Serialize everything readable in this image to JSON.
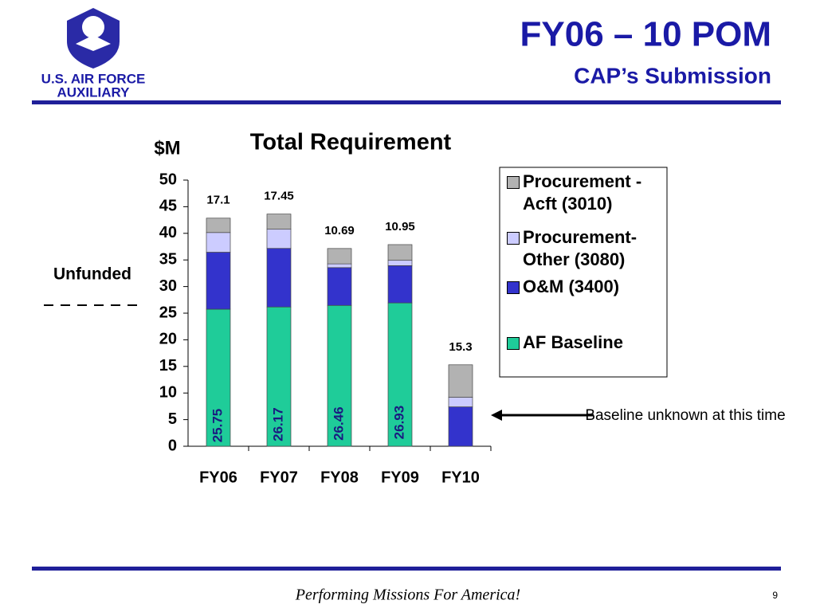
{
  "header": {
    "title": "FY06 – 10 POM",
    "subtitle": "CAP’s Submission"
  },
  "logo": {
    "line1": "U.S. AIR FORCE",
    "line2": "AUXILIARY"
  },
  "footer": {
    "text": "Performing Missions For America!",
    "page_number": "9"
  },
  "chart_data": {
    "type": "bar",
    "stacked": true,
    "title": "Total Requirement",
    "y_label": "$M",
    "categories": [
      "FY06",
      "FY07",
      "FY08",
      "FY09",
      "FY10"
    ],
    "series": [
      {
        "name": "AF Baseline",
        "color": "#1fcc99",
        "values": [
          25.75,
          26.17,
          26.46,
          26.93,
          null
        ]
      },
      {
        "name": "O&M (3400)",
        "color": "#3333cc",
        "values": [
          10.7,
          11.0,
          7.1,
          7.0,
          7.4
        ]
      },
      {
        "name": "Procurement-Other (3080)",
        "color": "#ccccff",
        "values": [
          3.7,
          3.6,
          0.7,
          1.0,
          1.8
        ]
      },
      {
        "name": "Procurement - Acft (3010)",
        "color": "#b2b2b2",
        "values": [
          2.7,
          2.85,
          2.89,
          2.95,
          6.1
        ]
      }
    ],
    "unfunded_totals": [
      17.1,
      17.45,
      10.69,
      10.95,
      15.3
    ],
    "ylim": [
      0,
      50
    ],
    "yticks": [
      0,
      5,
      10,
      15,
      20,
      25,
      30,
      35,
      40,
      45,
      50
    ],
    "annotations": [
      "Unfunded",
      "Baseline unknown at this time"
    ]
  }
}
